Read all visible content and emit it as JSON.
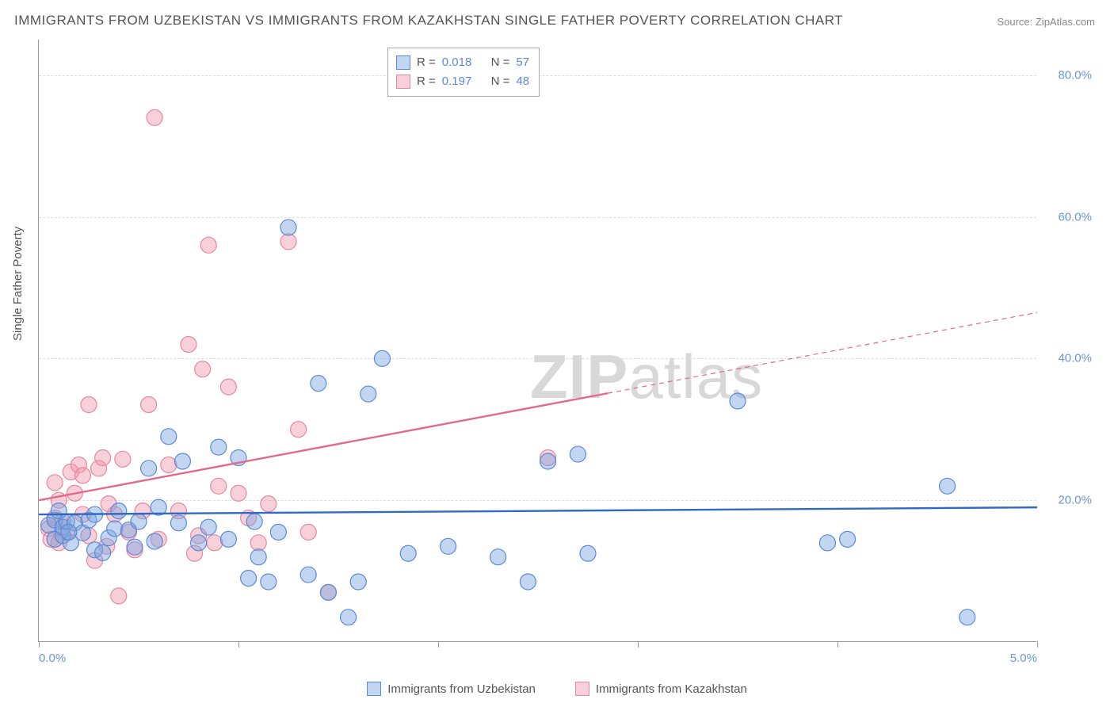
{
  "title": "IMMIGRANTS FROM UZBEKISTAN VS IMMIGRANTS FROM KAZAKHSTAN SINGLE FATHER POVERTY CORRELATION CHART",
  "source_label": "Source: ZipAtlas.com",
  "y_axis_title": "Single Father Poverty",
  "watermark_bold": "ZIP",
  "watermark_light": "atlas",
  "chart": {
    "type": "scatter",
    "background_color": "#ffffff",
    "grid_color": "#dddddd",
    "axis_color": "#999999",
    "xlim": [
      0.0,
      5.0
    ],
    "ylim": [
      0.0,
      85.0
    ],
    "y_ticks": [
      20.0,
      40.0,
      60.0,
      80.0
    ],
    "y_tick_labels": [
      "20.0%",
      "40.0%",
      "60.0%",
      "80.0%"
    ],
    "x_tick_positions": [
      0.0,
      1.0,
      2.0,
      3.0,
      4.0,
      5.0
    ],
    "x_tick_labels_shown": {
      "0.0": "0.0%",
      "5.0": "5.0%"
    },
    "marker_radius": 10,
    "marker_stroke_width": 1.2,
    "trend_line_width": 2.4,
    "series": [
      {
        "key": "uzbekistan",
        "label": "Immigrants from Uzbekistan",
        "fill": "rgba(120,165,225,0.45)",
        "stroke": "#5b8ad6",
        "line_color": "#2f6bc5",
        "r": 0.018,
        "r_label": "0.018",
        "n": 57,
        "n_label": "57",
        "trend": {
          "x1": 0.0,
          "y1": 18.0,
          "x2": 5.0,
          "y2": 19.0,
          "dashed_from_x": null
        },
        "points": [
          [
            0.05,
            16.5
          ],
          [
            0.08,
            17.2
          ],
          [
            0.08,
            14.5
          ],
          [
            0.1,
            18.5
          ],
          [
            0.12,
            15.0
          ],
          [
            0.12,
            16.2
          ],
          [
            0.14,
            17.0
          ],
          [
            0.16,
            14.0
          ],
          [
            0.18,
            16.8
          ],
          [
            0.22,
            15.4
          ],
          [
            0.25,
            17.2
          ],
          [
            0.28,
            13.0
          ],
          [
            0.28,
            18.0
          ],
          [
            0.32,
            12.6
          ],
          [
            0.35,
            14.7
          ],
          [
            0.38,
            16.0
          ],
          [
            0.4,
            18.5
          ],
          [
            0.45,
            15.8
          ],
          [
            0.48,
            13.4
          ],
          [
            0.5,
            17.0
          ],
          [
            0.55,
            24.5
          ],
          [
            0.58,
            14.2
          ],
          [
            0.6,
            19.0
          ],
          [
            0.65,
            29.0
          ],
          [
            0.7,
            16.8
          ],
          [
            0.72,
            25.5
          ],
          [
            0.8,
            14.0
          ],
          [
            0.85,
            16.2
          ],
          [
            0.9,
            27.5
          ],
          [
            0.95,
            14.5
          ],
          [
            1.0,
            26.0
          ],
          [
            1.05,
            9.0
          ],
          [
            1.08,
            17.0
          ],
          [
            1.1,
            12.0
          ],
          [
            1.15,
            8.5
          ],
          [
            1.2,
            15.5
          ],
          [
            1.25,
            58.5
          ],
          [
            1.35,
            9.5
          ],
          [
            1.4,
            36.5
          ],
          [
            1.45,
            7.0
          ],
          [
            1.55,
            3.5
          ],
          [
            1.6,
            8.5
          ],
          [
            1.65,
            35.0
          ],
          [
            1.72,
            40.0
          ],
          [
            1.85,
            12.5
          ],
          [
            2.05,
            13.5
          ],
          [
            2.3,
            12.0
          ],
          [
            2.45,
            8.5
          ],
          [
            2.55,
            25.5
          ],
          [
            2.7,
            26.5
          ],
          [
            2.75,
            12.5
          ],
          [
            3.5,
            34.0
          ],
          [
            3.95,
            14.0
          ],
          [
            4.05,
            14.5
          ],
          [
            4.55,
            22.0
          ],
          [
            4.65,
            3.5
          ],
          [
            0.15,
            15.5
          ]
        ]
      },
      {
        "key": "kazakhstan",
        "label": "Immigrants from Kazakhstan",
        "fill": "rgba(240,150,170,0.45)",
        "stroke": "#e887a0",
        "line_color": "#e26a8c",
        "r": 0.197,
        "r_label": "0.197",
        "n": 48,
        "n_label": "48",
        "trend": {
          "x1": 0.0,
          "y1": 20.0,
          "x2": 5.0,
          "y2": 46.5,
          "dashed_from_x": 2.85
        },
        "points": [
          [
            0.05,
            16.0
          ],
          [
            0.06,
            14.5
          ],
          [
            0.08,
            17.5
          ],
          [
            0.08,
            22.5
          ],
          [
            0.1,
            14.0
          ],
          [
            0.1,
            20.0
          ],
          [
            0.12,
            17.0
          ],
          [
            0.14,
            15.5
          ],
          [
            0.16,
            24.0
          ],
          [
            0.18,
            21.0
          ],
          [
            0.2,
            25.0
          ],
          [
            0.22,
            18.0
          ],
          [
            0.22,
            23.5
          ],
          [
            0.25,
            15.0
          ],
          [
            0.25,
            33.5
          ],
          [
            0.28,
            11.5
          ],
          [
            0.3,
            24.5
          ],
          [
            0.32,
            26.0
          ],
          [
            0.34,
            13.5
          ],
          [
            0.35,
            19.5
          ],
          [
            0.38,
            18.0
          ],
          [
            0.4,
            6.5
          ],
          [
            0.42,
            25.8
          ],
          [
            0.45,
            15.5
          ],
          [
            0.48,
            13.0
          ],
          [
            0.52,
            18.5
          ],
          [
            0.55,
            33.5
          ],
          [
            0.58,
            74.0
          ],
          [
            0.6,
            14.5
          ],
          [
            0.65,
            25.0
          ],
          [
            0.7,
            18.5
          ],
          [
            0.75,
            42.0
          ],
          [
            0.78,
            12.5
          ],
          [
            0.8,
            15.0
          ],
          [
            0.82,
            38.5
          ],
          [
            0.85,
            56.0
          ],
          [
            0.88,
            14.0
          ],
          [
            0.9,
            22.0
          ],
          [
            0.95,
            36.0
          ],
          [
            1.0,
            21.0
          ],
          [
            1.05,
            17.5
          ],
          [
            1.1,
            14.0
          ],
          [
            1.15,
            19.5
          ],
          [
            1.25,
            56.5
          ],
          [
            1.3,
            30.0
          ],
          [
            1.35,
            15.5
          ],
          [
            1.45,
            7.0
          ],
          [
            2.55,
            26.0
          ]
        ]
      }
    ]
  },
  "stats_box": {
    "r_prefix": "R = ",
    "n_prefix": "N = "
  }
}
